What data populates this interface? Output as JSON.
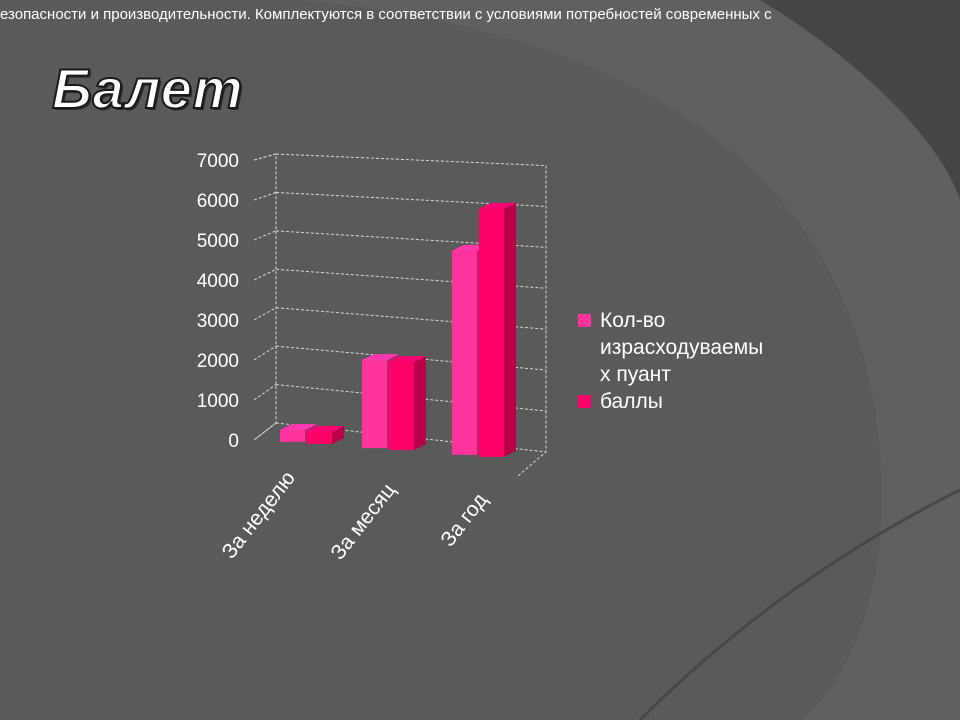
{
  "slide": {
    "top_text": "езопасности и производительности.  Комплектуются в соответствии с условиями потребностей современных с",
    "title": "Балет"
  },
  "colors": {
    "background": "#5e5e5e",
    "series_1": "#ff3399",
    "series_2": "#ff0066"
  },
  "chart_data": {
    "type": "bar",
    "style": "3d-clustered-column",
    "categories": [
      "За неделю",
      "За месяц",
      "За год"
    ],
    "series": [
      {
        "name": "Кол-во израсходуваемых пуант",
        "values": [
          300,
          2200,
          5100
        ]
      },
      {
        "name": "баллы",
        "values": [
          300,
          2200,
          6200
        ]
      }
    ],
    "y_ticks": [
      "0",
      "1000",
      "2000",
      "3000",
      "4000",
      "5000",
      "6000",
      "7000"
    ],
    "ylim": [
      0,
      7000
    ],
    "grid": true,
    "legend_position": "right",
    "legend_lines": [
      [
        "Кол-во",
        "израсходуваемы",
        "х пуант"
      ],
      [
        "баллы"
      ]
    ]
  }
}
